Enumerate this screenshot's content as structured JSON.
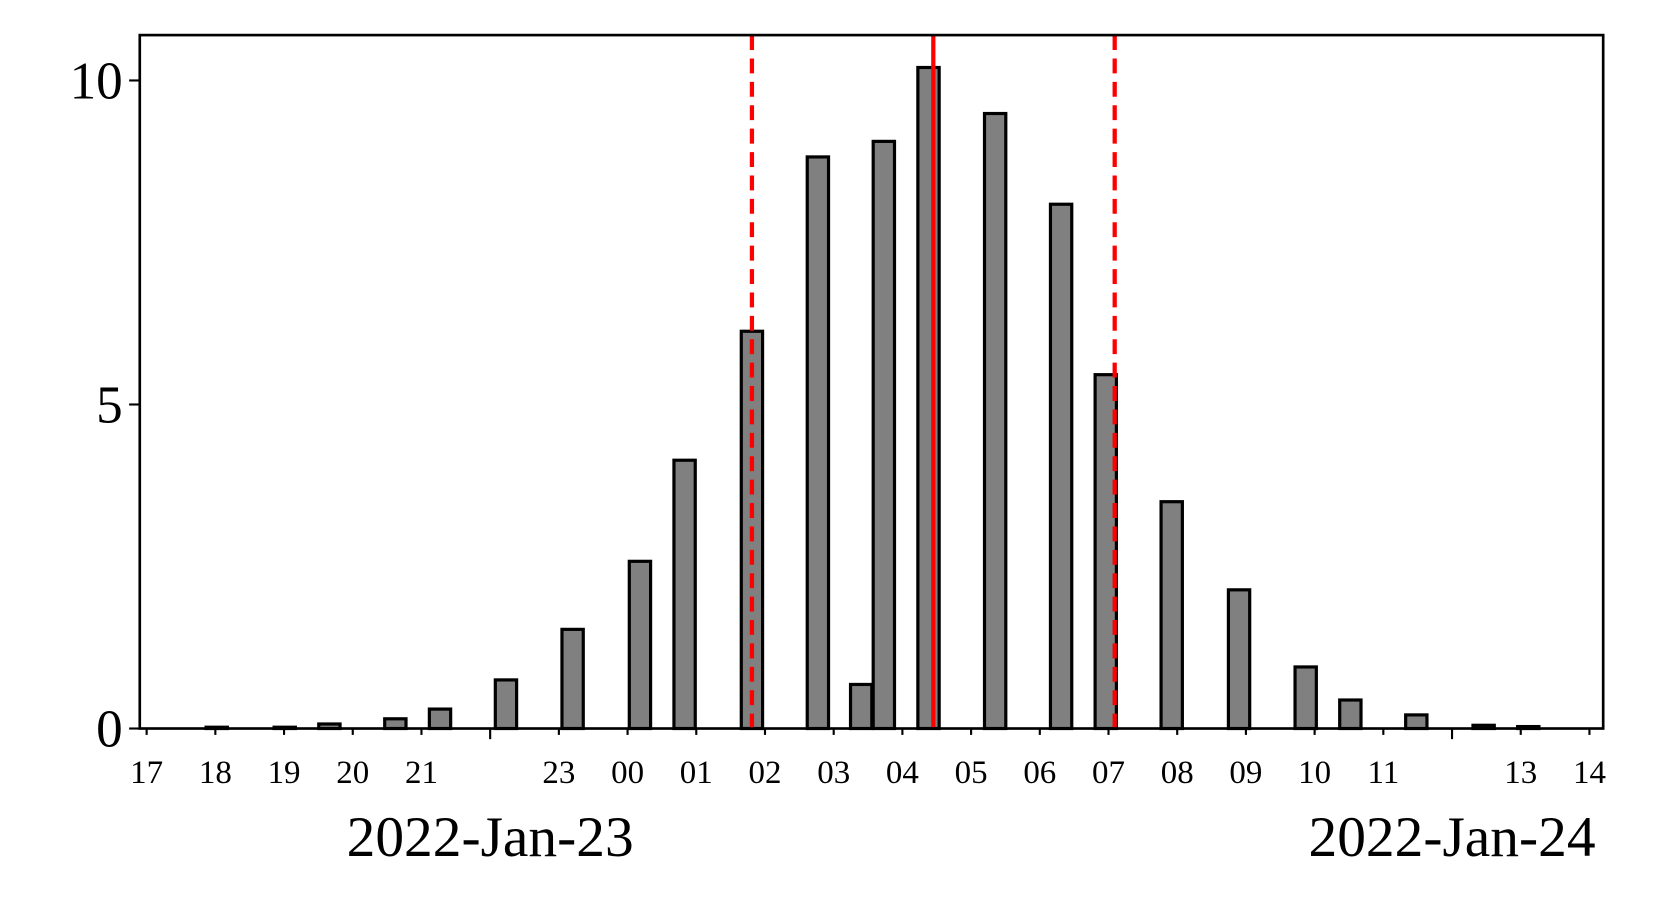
{
  "chart_data": {
    "type": "bar",
    "x": [
      18.02,
      19.01,
      19.66,
      20.62,
      21.27,
      22.23,
      23.2,
      24.18,
      24.83,
      25.81,
      26.77,
      27.4,
      27.73,
      28.38,
      29.35,
      30.31,
      30.96,
      31.92,
      32.9,
      33.87,
      34.52,
      35.48,
      36.46,
      37.11
    ],
    "values": [
      0.02,
      0.02,
      0.07,
      0.15,
      0.3,
      0.75,
      1.53,
      2.58,
      4.14,
      6.13,
      8.82,
      0.68,
      9.06,
      10.2,
      9.49,
      8.09,
      5.46,
      3.5,
      2.14,
      0.95,
      0.44,
      0.21,
      0.05,
      0.03
    ],
    "bar_width": 0.31,
    "color": "#808080",
    "edgecolor": "#000000",
    "xlim": [
      16.9,
      38.2
    ],
    "ylim": [
      0,
      10.7
    ],
    "yticks": [
      0,
      5,
      10
    ],
    "xticks": [
      {
        "value": 17,
        "label": "17"
      },
      {
        "value": 18,
        "label": "18"
      },
      {
        "value": 19,
        "label": "19"
      },
      {
        "value": 20,
        "label": "20"
      },
      {
        "value": 21,
        "label": "21"
      },
      {
        "value": 23,
        "label": "23"
      },
      {
        "value": 24,
        "label": "00"
      },
      {
        "value": 25,
        "label": "01"
      },
      {
        "value": 26,
        "label": "02"
      },
      {
        "value": 27,
        "label": "03"
      },
      {
        "value": 28,
        "label": "04"
      },
      {
        "value": 29,
        "label": "05"
      },
      {
        "value": 30,
        "label": "06"
      },
      {
        "value": 31,
        "label": "07"
      },
      {
        "value": 32,
        "label": "08"
      },
      {
        "value": 33,
        "label": "09"
      },
      {
        "value": 34,
        "label": "10"
      },
      {
        "value": 35,
        "label": "11"
      },
      {
        "value": 37,
        "label": "13"
      },
      {
        "value": 38,
        "label": "14"
      }
    ],
    "major_xticks": [
      {
        "value": 22,
        "label": "2022-Jan-23"
      },
      {
        "value": 36,
        "label": "2022-Jan-24"
      }
    ],
    "vlines": [
      {
        "x": 25.81,
        "style": "dashed",
        "color": "#ff0000"
      },
      {
        "x": 28.45,
        "style": "solid",
        "color": "#ff0000"
      },
      {
        "x": 31.09,
        "style": "dashed",
        "color": "#ff0000"
      }
    ]
  }
}
